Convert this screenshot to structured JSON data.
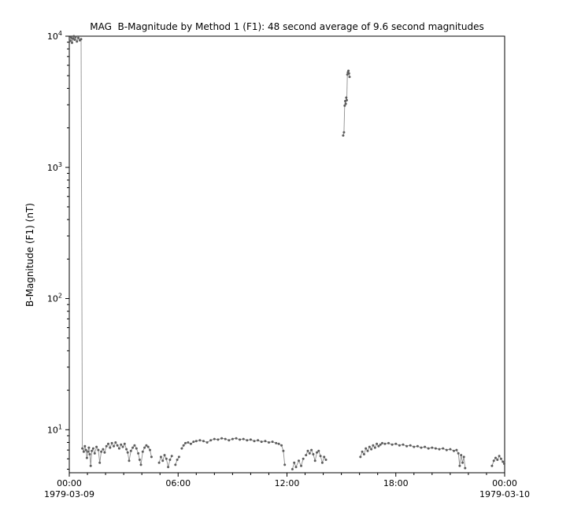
{
  "figure": {
    "background": "#ffffff"
  },
  "chart_data": {
    "type": "line",
    "title": "MAG  B-Magnitude by Method 1 (F1): 48 second average of 9.6 second magnitudes",
    "xlabel": "",
    "ylabel": "B-Magnitude (F1) (nT)",
    "yscale": "log",
    "grid": false,
    "legend": null,
    "xlim": [
      0,
      24
    ],
    "ylim": [
      4.7,
      10000
    ],
    "x_unit": "hours from start of 1979-03-09",
    "x_ticks": [
      {
        "h": 0,
        "label": "00:00"
      },
      {
        "h": 6,
        "label": "06:00"
      },
      {
        "h": 12,
        "label": "12:00"
      },
      {
        "h": 18,
        "label": "18:00"
      },
      {
        "h": 24,
        "label": "00:00"
      }
    ],
    "x_date_labels": [
      {
        "h": 0,
        "label": "1979-03-09"
      },
      {
        "h": 24,
        "label": "1979-03-10"
      }
    ],
    "y_ticks": [
      {
        "value": 10,
        "exp": "1"
      },
      {
        "value": 100,
        "exp": "2"
      },
      {
        "value": 1000,
        "exp": "3"
      },
      {
        "value": 10000,
        "exp": "4"
      }
    ],
    "marker_color": "#5c5c5c",
    "line_color": "#8f8f8f",
    "axis_color": "#000000",
    "segments": [
      [
        [
          0.05,
          9200
        ],
        [
          0.1,
          9800
        ],
        [
          0.15,
          8900
        ],
        [
          0.2,
          9600
        ],
        [
          0.25,
          10000
        ],
        [
          0.3,
          9400
        ],
        [
          0.35,
          9900
        ],
        [
          0.42,
          9100
        ],
        [
          0.5,
          9700
        ],
        [
          0.58,
          9300
        ],
        [
          0.65,
          9500
        ],
        [
          0.72,
          7.2
        ],
        [
          0.8,
          6.8
        ],
        [
          0.86,
          7.5
        ],
        [
          0.92,
          7.0
        ],
        [
          0.97,
          6.1
        ],
        [
          1.03,
          6.8
        ],
        [
          1.08,
          7.3
        ],
        [
          1.13,
          6.5
        ],
        [
          1.18,
          5.3
        ],
        [
          1.24,
          6.9
        ],
        [
          1.32,
          7.2
        ],
        [
          1.4,
          6.6
        ],
        [
          1.5,
          7.4
        ],
        [
          1.6,
          7.0
        ],
        [
          1.68,
          5.6
        ],
        [
          1.76,
          6.8
        ],
        [
          1.86,
          7.1
        ],
        [
          1.95,
          6.7
        ],
        [
          2.05,
          7.5
        ],
        [
          2.15,
          7.8
        ],
        [
          2.25,
          7.3
        ],
        [
          2.35,
          7.9
        ],
        [
          2.45,
          7.5
        ],
        [
          2.55,
          8.0
        ],
        [
          2.65,
          7.6
        ],
        [
          2.75,
          7.2
        ],
        [
          2.85,
          7.7
        ],
        [
          2.95,
          7.4
        ],
        [
          3.05,
          7.8
        ],
        [
          3.15,
          7.1
        ],
        [
          3.22,
          6.7
        ],
        [
          3.3,
          5.8
        ],
        [
          3.4,
          6.9
        ],
        [
          3.5,
          7.3
        ],
        [
          3.6,
          7.6
        ],
        [
          3.7,
          7.2
        ],
        [
          3.8,
          6.6
        ],
        [
          3.88,
          5.9
        ],
        [
          3.95,
          5.4
        ],
        [
          4.05,
          6.8
        ],
        [
          4.15,
          7.3
        ],
        [
          4.25,
          7.6
        ],
        [
          4.35,
          7.4
        ],
        [
          4.45,
          7.0
        ],
        [
          4.53,
          6.2
        ]
      ],
      [
        [
          4.95,
          5.6
        ],
        [
          5.05,
          6.2
        ],
        [
          5.15,
          5.8
        ],
        [
          5.25,
          6.4
        ],
        [
          5.35,
          6.0
        ],
        [
          5.45,
          5.2
        ],
        [
          5.55,
          5.9
        ],
        [
          5.65,
          6.3
        ]
      ],
      [
        [
          5.85,
          5.4
        ],
        [
          5.95,
          5.9
        ],
        [
          6.05,
          6.2
        ]
      ],
      [
        [
          6.2,
          7.2
        ],
        [
          6.3,
          7.6
        ],
        [
          6.4,
          7.9
        ],
        [
          6.55,
          8.0
        ],
        [
          6.7,
          7.8
        ],
        [
          6.85,
          8.1
        ],
        [
          7.0,
          8.2
        ],
        [
          7.2,
          8.3
        ],
        [
          7.4,
          8.2
        ],
        [
          7.6,
          8.0
        ],
        [
          7.8,
          8.3
        ],
        [
          8.0,
          8.5
        ],
        [
          8.2,
          8.4
        ],
        [
          8.4,
          8.6
        ],
        [
          8.6,
          8.5
        ],
        [
          8.8,
          8.3
        ],
        [
          9.0,
          8.5
        ],
        [
          9.2,
          8.6
        ],
        [
          9.4,
          8.4
        ],
        [
          9.6,
          8.5
        ],
        [
          9.8,
          8.3
        ],
        [
          10.0,
          8.4
        ],
        [
          10.2,
          8.2
        ],
        [
          10.4,
          8.3
        ],
        [
          10.6,
          8.1
        ],
        [
          10.8,
          8.2
        ],
        [
          11.0,
          8.0
        ],
        [
          11.2,
          8.1
        ],
        [
          11.4,
          7.9
        ],
        [
          11.55,
          7.8
        ],
        [
          11.7,
          7.6
        ],
        [
          11.8,
          6.9
        ],
        [
          11.88,
          5.4
        ]
      ],
      [
        [
          12.3,
          5.0
        ],
        [
          12.4,
          5.6
        ],
        [
          12.5,
          5.2
        ],
        [
          12.65,
          5.8
        ],
        [
          12.78,
          5.3
        ],
        [
          12.9,
          6.0
        ]
      ],
      [
        [
          13.05,
          6.4
        ],
        [
          13.15,
          6.9
        ],
        [
          13.25,
          6.6
        ],
        [
          13.35,
          7.0
        ],
        [
          13.45,
          6.5
        ],
        [
          13.55,
          5.8
        ],
        [
          13.65,
          6.7
        ],
        [
          13.75,
          6.9
        ],
        [
          13.85,
          6.3
        ],
        [
          13.95,
          5.6
        ],
        [
          14.05,
          6.2
        ],
        [
          14.15,
          5.9
        ]
      ],
      [
        [
          15.1,
          1750
        ],
        [
          15.14,
          1850
        ],
        [
          15.18,
          2950
        ],
        [
          15.21,
          3200
        ],
        [
          15.24,
          3050
        ],
        [
          15.27,
          3400
        ],
        [
          15.3,
          3250
        ],
        [
          15.33,
          5100
        ],
        [
          15.36,
          5300
        ],
        [
          15.39,
          5450
        ],
        [
          15.42,
          5200
        ],
        [
          15.45,
          4900
        ]
      ],
      [
        [
          16.05,
          6.2
        ],
        [
          16.15,
          6.8
        ],
        [
          16.25,
          6.5
        ],
        [
          16.35,
          7.2
        ],
        [
          16.45,
          6.9
        ],
        [
          16.55,
          7.4
        ],
        [
          16.65,
          7.1
        ],
        [
          16.75,
          7.6
        ],
        [
          16.85,
          7.3
        ],
        [
          16.95,
          7.8
        ],
        [
          17.05,
          7.5
        ],
        [
          17.15,
          7.7
        ],
        [
          17.25,
          7.9
        ]
      ],
      [
        [
          17.4,
          7.8
        ],
        [
          17.6,
          7.9
        ],
        [
          17.8,
          7.7
        ],
        [
          18.0,
          7.8
        ],
        [
          18.2,
          7.6
        ],
        [
          18.4,
          7.7
        ],
        [
          18.6,
          7.5
        ],
        [
          18.8,
          7.6
        ],
        [
          19.0,
          7.4
        ],
        [
          19.2,
          7.5
        ],
        [
          19.4,
          7.3
        ],
        [
          19.6,
          7.4
        ],
        [
          19.8,
          7.2
        ],
        [
          20.0,
          7.3
        ],
        [
          20.2,
          7.2
        ],
        [
          20.4,
          7.1
        ],
        [
          20.6,
          7.2
        ],
        [
          20.8,
          7.0
        ],
        [
          21.0,
          7.1
        ],
        [
          21.2,
          6.9
        ],
        [
          21.35,
          7.0
        ],
        [
          21.45,
          6.6
        ],
        [
          21.52,
          5.3
        ],
        [
          21.6,
          6.4
        ],
        [
          21.68,
          5.6
        ],
        [
          21.75,
          6.2
        ],
        [
          21.82,
          5.1
        ]
      ],
      [
        [
          23.3,
          5.3
        ],
        [
          23.4,
          5.8
        ],
        [
          23.5,
          6.1
        ],
        [
          23.6,
          5.9
        ],
        [
          23.7,
          6.3
        ],
        [
          23.8,
          6.0
        ],
        [
          23.9,
          5.7
        ],
        [
          23.98,
          5.5
        ]
      ]
    ]
  }
}
